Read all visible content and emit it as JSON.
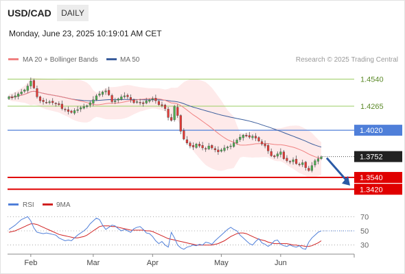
{
  "header": {
    "symbol": "USD/CAD",
    "timeframe": "DAILY",
    "timestamp": "Monday, June 23, 2025 10:19:01 AM CET",
    "copyright": "Research © 2025 Trading Central"
  },
  "legend": {
    "ma20": "MA 20 + Bollinger Bands",
    "ma50": "MA 50",
    "rsi": "RSI",
    "rsi_ma": "9MA"
  },
  "colors": {
    "up": "#4caf50",
    "down": "#e53935",
    "ma20": "#f08080",
    "ma50": "#3a5d9c",
    "band": "#fde3e3",
    "level_green": "#9acd60",
    "level_blue": "#4f7fd9",
    "level_red": "#e00000",
    "last_price_tag": "#222222",
    "arrow": "#2a5aa6",
    "rsi_line": "#4f7fd9",
    "rsi_ma_line": "#d02020"
  },
  "chart_data": [
    {
      "type": "candlestick",
      "title": "USD/CAD DAILY",
      "x_tick_labels": [
        "Feb",
        "Mar",
        "Apr",
        "May",
        "Jun"
      ],
      "ylim": [
        1.338,
        1.462
      ],
      "levels": [
        {
          "value": 1.454,
          "label": "1.4540",
          "kind": "resistance"
        },
        {
          "value": 1.4265,
          "label": "1.4265",
          "kind": "resistance"
        },
        {
          "value": 1.402,
          "label": "1.4020",
          "kind": "pivot"
        },
        {
          "value": 1.354,
          "label": "1.3540",
          "kind": "support"
        },
        {
          "value": 1.342,
          "label": "1.3420",
          "kind": "support"
        }
      ],
      "last_price": {
        "value": 1.3752,
        "label": "1.3752"
      },
      "series_close": [
        1.436,
        1.435,
        1.437,
        1.439,
        1.441,
        1.443,
        1.447,
        1.452,
        1.445,
        1.436,
        1.432,
        1.431,
        1.43,
        1.431,
        1.43,
        1.429,
        1.428,
        1.424,
        1.423,
        1.421,
        1.42,
        1.422,
        1.423,
        1.425,
        1.426,
        1.427,
        1.43,
        1.433,
        1.437,
        1.439,
        1.441,
        1.442,
        1.438,
        1.431,
        1.432,
        1.434,
        1.436,
        1.437,
        1.436,
        1.433,
        1.43,
        1.431,
        1.43,
        1.429,
        1.432,
        1.433,
        1.434,
        1.432,
        1.428,
        1.427,
        1.424,
        1.415,
        1.412,
        1.426,
        1.417,
        1.401,
        1.393,
        1.389,
        1.386,
        1.385,
        1.388,
        1.386,
        1.384,
        1.383,
        1.386,
        1.384,
        1.382,
        1.38,
        1.382,
        1.384,
        1.385,
        1.386,
        1.389,
        1.392,
        1.395,
        1.397,
        1.396,
        1.395,
        1.396,
        1.394,
        1.391,
        1.388,
        1.386,
        1.381,
        1.376,
        1.375,
        1.378,
        1.38,
        1.373,
        1.371,
        1.37,
        1.372,
        1.368,
        1.367,
        1.369,
        1.364,
        1.361,
        1.366,
        1.371,
        1.373,
        1.375
      ]
    },
    {
      "type": "line",
      "title": "RSI",
      "yticks": [
        70,
        50,
        30
      ],
      "ylim": [
        20,
        80
      ],
      "series": [
        {
          "name": "RSI",
          "values": [
            52,
            55,
            58,
            62,
            66,
            68,
            70,
            64,
            54,
            48,
            47,
            46,
            47,
            46,
            45,
            44,
            40,
            38,
            36,
            37,
            36,
            40,
            44,
            47,
            50,
            54,
            60,
            64,
            68,
            66,
            58,
            52,
            55,
            58,
            57,
            53,
            50,
            52,
            50,
            48,
            53,
            55,
            56,
            52,
            47,
            46,
            42,
            36,
            32,
            35,
            30,
            27,
            48,
            40,
            30,
            26,
            24,
            27,
            28,
            30,
            29,
            31,
            30,
            34,
            33,
            31,
            36,
            40,
            44,
            48,
            52,
            55,
            52,
            50,
            44,
            40,
            36,
            32,
            30,
            35,
            39,
            33,
            31,
            28,
            31,
            36,
            37,
            31,
            29,
            28,
            30,
            28,
            27,
            29,
            25,
            24,
            34,
            40,
            44,
            48,
            50
          ]
        },
        {
          "name": "9MA",
          "values": [
            48,
            49,
            50,
            52,
            54,
            56,
            58,
            60,
            60,
            59,
            57,
            55,
            53,
            51,
            49,
            47,
            45,
            44,
            43,
            42,
            41,
            40,
            40,
            41,
            42,
            44,
            47,
            50,
            53,
            56,
            57,
            57,
            57,
            56,
            56,
            55,
            54,
            53,
            52,
            51,
            51,
            51,
            51,
            51,
            50,
            50,
            49,
            47,
            45,
            43,
            41,
            39,
            38,
            37,
            36,
            35,
            34,
            33,
            32,
            31,
            30,
            30,
            30,
            30,
            30,
            30,
            31,
            32,
            34,
            36,
            39,
            42,
            44,
            46,
            47,
            47,
            46,
            44,
            42,
            40,
            38,
            37,
            36,
            34,
            33,
            32,
            32,
            32,
            32,
            32,
            31,
            30,
            30,
            29,
            29,
            28,
            28,
            29,
            31,
            33,
            36
          ]
        }
      ]
    }
  ]
}
